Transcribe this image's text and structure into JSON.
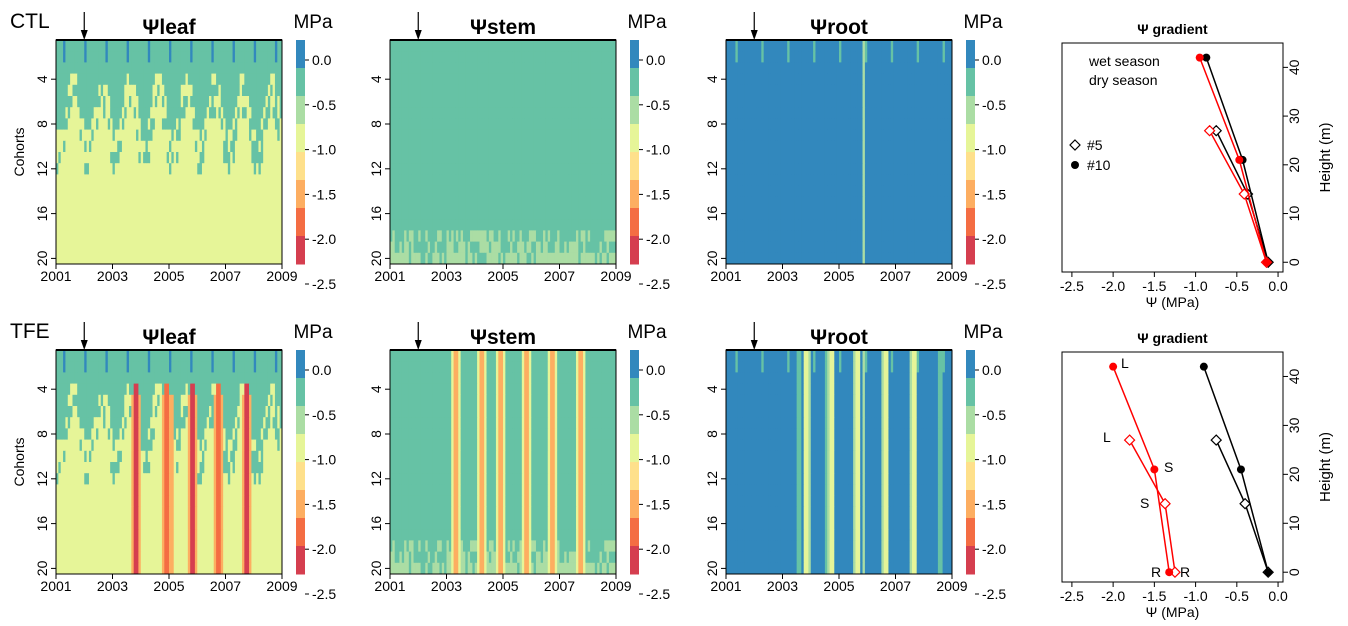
{
  "figure": {
    "row_labels": [
      "CTL",
      "TFE"
    ],
    "heatmap_titles": [
      "Ψleaf",
      "Ψstem",
      "Ψroot"
    ],
    "unit": "MPa",
    "y_label": "Cohorts",
    "x_ticks": [
      "2001",
      "2003",
      "2005",
      "2007",
      "2009"
    ],
    "y_ticks": [
      "4",
      "8",
      "12",
      "16",
      "20"
    ],
    "colorbar": {
      "ticks": [
        "0.0",
        "-0.5",
        "-1.0",
        "-1.5",
        "-2.0",
        "-2.5"
      ],
      "colors": [
        "#3288bd",
        "#66c2a5",
        "#abdda4",
        "#e6f598",
        "#fee08b",
        "#fdae61",
        "#f46d43",
        "#d53e4f"
      ]
    },
    "gradient": {
      "title": "Ψ gradient",
      "xlabel": "Ψ (MPa)",
      "ylabel": "Height (m)",
      "x_ticks": [
        "-2.5",
        "-2.0",
        "-1.5",
        "-1.0",
        "-0.5",
        "0.0"
      ],
      "y_ticks": [
        "0",
        "10",
        "20",
        "30",
        "40"
      ],
      "legend_wet": "wet season",
      "legend_dry": "dry season",
      "legend_5": "#5",
      "legend_10": "#10",
      "colors": {
        "wet": "#000000",
        "dry": "#ff0000"
      },
      "annotations": [
        "L",
        "L",
        "S",
        "S",
        "R",
        "R"
      ]
    }
  },
  "chart_data": [
    {
      "type": "heatmap",
      "panel": "CTL",
      "title": "Ψleaf",
      "xlim": [
        2001,
        2009
      ],
      "ylim": [
        20,
        1
      ],
      "ylabel": "Cohorts",
      "zlim": [
        -2.5,
        0
      ],
      "unit": "MPa",
      "arrow_year": 2002
    },
    {
      "type": "heatmap",
      "panel": "CTL",
      "title": "Ψstem",
      "xlim": [
        2001,
        2009
      ],
      "ylim": [
        20,
        1
      ],
      "zlim": [
        -2.5,
        0
      ],
      "unit": "MPa",
      "arrow_year": 2002
    },
    {
      "type": "heatmap",
      "panel": "CTL",
      "title": "Ψroot",
      "xlim": [
        2001,
        2009
      ],
      "ylim": [
        20,
        1
      ],
      "zlim": [
        -2.5,
        0
      ],
      "unit": "MPa",
      "arrow_year": 2002
    },
    {
      "type": "line",
      "panel": "CTL",
      "title": "Ψ gradient",
      "xlabel": "Ψ (MPa)",
      "ylabel": "Height (m)",
      "xlim": [
        -2.5,
        0
      ],
      "ylim": [
        0,
        43
      ],
      "series": [
        {
          "name": "wet season",
          "marker": "#5",
          "x": [
            -0.75,
            -0.37,
            -0.12
          ],
          "y": [
            27,
            14,
            0
          ]
        },
        {
          "name": "wet season",
          "marker": "#10",
          "x": [
            -0.87,
            -0.43,
            -0.12
          ],
          "y": [
            42,
            21,
            0
          ]
        },
        {
          "name": "dry season",
          "marker": "#5",
          "x": [
            -0.83,
            -0.41,
            -0.14
          ],
          "y": [
            27,
            14,
            0
          ]
        },
        {
          "name": "dry season",
          "marker": "#10",
          "x": [
            -0.95,
            -0.47,
            -0.14
          ],
          "y": [
            42,
            21,
            0
          ]
        }
      ]
    },
    {
      "type": "heatmap",
      "panel": "TFE",
      "title": "Ψleaf",
      "xlim": [
        2001,
        2009
      ],
      "ylim": [
        20,
        1
      ],
      "ylabel": "Cohorts",
      "zlim": [
        -2.5,
        0
      ],
      "unit": "MPa",
      "arrow_year": 2002
    },
    {
      "type": "heatmap",
      "panel": "TFE",
      "title": "Ψstem",
      "xlim": [
        2001,
        2009
      ],
      "ylim": [
        20,
        1
      ],
      "zlim": [
        -2.5,
        0
      ],
      "unit": "MPa",
      "arrow_year": 2002
    },
    {
      "type": "heatmap",
      "panel": "TFE",
      "title": "Ψroot",
      "xlim": [
        2001,
        2009
      ],
      "ylim": [
        20,
        1
      ],
      "zlim": [
        -2.5,
        0
      ],
      "unit": "MPa",
      "arrow_year": 2002
    },
    {
      "type": "line",
      "panel": "TFE",
      "title": "Ψ gradient",
      "xlabel": "Ψ (MPa)",
      "ylabel": "Height (m)",
      "xlim": [
        -2.5,
        0
      ],
      "ylim": [
        0,
        43
      ],
      "series": [
        {
          "name": "wet season",
          "marker": "#5",
          "x": [
            -0.75,
            -0.4,
            -0.12
          ],
          "y": [
            27,
            14,
            0
          ]
        },
        {
          "name": "wet season",
          "marker": "#10",
          "x": [
            -0.9,
            -0.45,
            -0.12
          ],
          "y": [
            42,
            21,
            0
          ]
        },
        {
          "name": "dry season",
          "marker": "#5",
          "x": [
            -1.8,
            -1.37,
            -1.25
          ],
          "y": [
            27,
            14,
            0
          ]
        },
        {
          "name": "dry season",
          "marker": "#10",
          "x": [
            -2.0,
            -1.5,
            -1.32
          ],
          "y": [
            42,
            21,
            0
          ]
        }
      ]
    }
  ]
}
